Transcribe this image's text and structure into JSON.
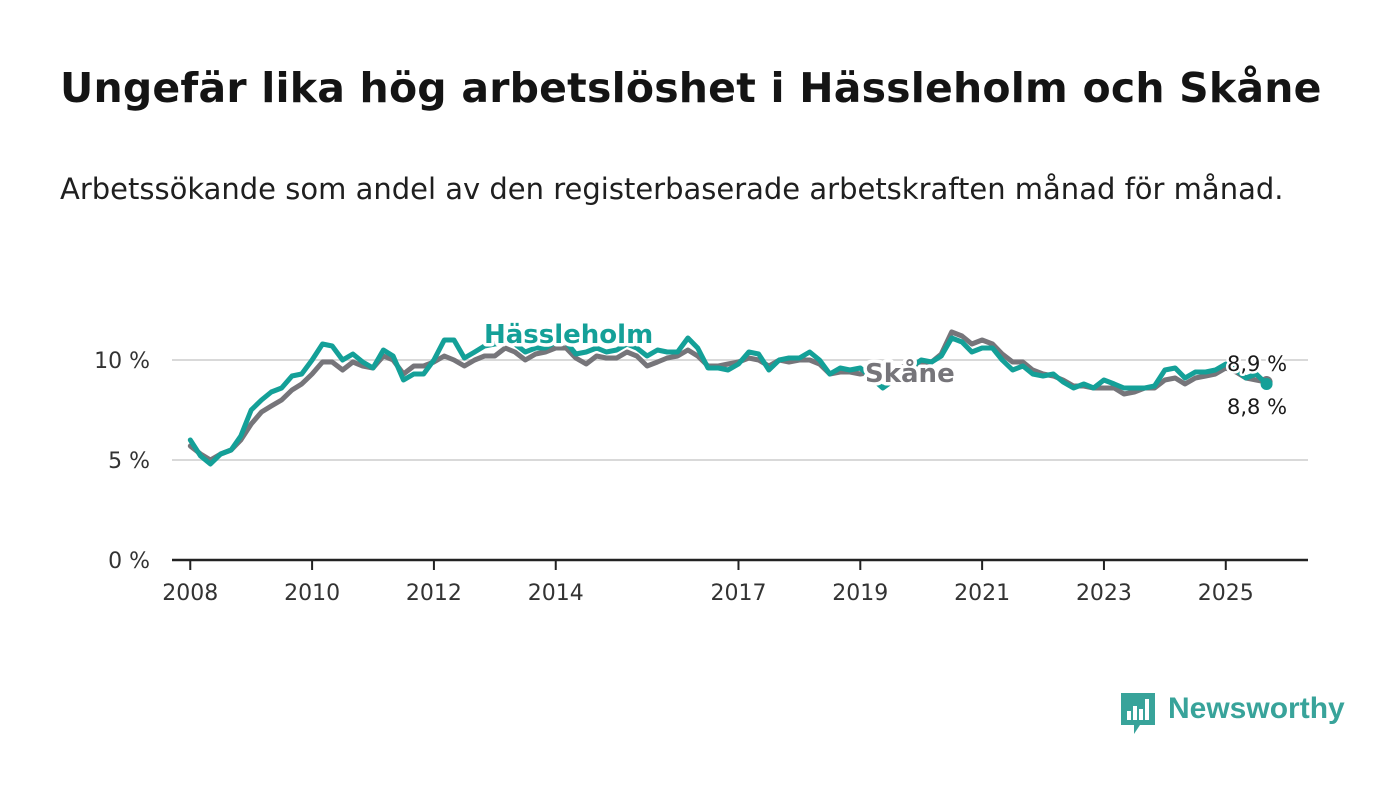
{
  "title": "Ungefär lika hög arbetslöshet i Hässleholm och Skåne",
  "subtitle": "Arbetssökande som andel av den registerbaserade arbetskraften månad för månad.",
  "brand": {
    "name": "Newsworthy",
    "color": "#38a39a"
  },
  "colors": {
    "hassleholm": "#14a098",
    "skane": "#76757a",
    "grid": "#d9d9d9",
    "axis": "#222222"
  },
  "chart_data": {
    "type": "line",
    "title": "Ungefär lika hög arbetslöshet i Hässleholm och Skåne",
    "xlabel": "",
    "ylabel": "",
    "xlim": [
      2007.7,
      2026.35
    ],
    "ylim": [
      0,
      12
    ],
    "y_ticks": [
      0,
      5,
      10
    ],
    "y_tick_labels": [
      "0 %",
      "5 %",
      "10 %"
    ],
    "x_ticks": [
      2008,
      2010,
      2012,
      2014,
      2017,
      2019,
      2021,
      2023,
      2025
    ],
    "x_tick_labels": [
      "2008",
      "2010",
      "2012",
      "2014",
      "2017",
      "2019",
      "2021",
      "2023",
      "2025"
    ],
    "grid": true,
    "series": [
      {
        "name": "Skåne",
        "label": "Skåne",
        "end_label": "8,9 %",
        "color": "#76757a",
        "points": [
          [
            2008.0,
            5.7
          ],
          [
            2008.17,
            5.3
          ],
          [
            2008.33,
            5.0
          ],
          [
            2008.5,
            5.3
          ],
          [
            2008.67,
            5.5
          ],
          [
            2008.83,
            6.0
          ],
          [
            2009.0,
            6.8
          ],
          [
            2009.17,
            7.4
          ],
          [
            2009.33,
            7.7
          ],
          [
            2009.5,
            8.0
          ],
          [
            2009.67,
            8.5
          ],
          [
            2009.83,
            8.8
          ],
          [
            2010.0,
            9.3
          ],
          [
            2010.17,
            9.9
          ],
          [
            2010.33,
            9.9
          ],
          [
            2010.5,
            9.5
          ],
          [
            2010.67,
            9.9
          ],
          [
            2010.83,
            9.7
          ],
          [
            2011.0,
            9.6
          ],
          [
            2011.17,
            10.2
          ],
          [
            2011.33,
            10.0
          ],
          [
            2011.5,
            9.3
          ],
          [
            2011.67,
            9.7
          ],
          [
            2011.83,
            9.7
          ],
          [
            2012.0,
            9.9
          ],
          [
            2012.17,
            10.2
          ],
          [
            2012.33,
            10.0
          ],
          [
            2012.5,
            9.7
          ],
          [
            2012.67,
            10.0
          ],
          [
            2012.83,
            10.2
          ],
          [
            2013.0,
            10.2
          ],
          [
            2013.17,
            10.6
          ],
          [
            2013.33,
            10.4
          ],
          [
            2013.5,
            10.0
          ],
          [
            2013.67,
            10.3
          ],
          [
            2013.83,
            10.4
          ],
          [
            2014.0,
            10.6
          ],
          [
            2014.17,
            10.6
          ],
          [
            2014.33,
            10.1
          ],
          [
            2014.5,
            9.8
          ],
          [
            2014.67,
            10.2
          ],
          [
            2014.83,
            10.1
          ],
          [
            2015.0,
            10.1
          ],
          [
            2015.17,
            10.4
          ],
          [
            2015.33,
            10.2
          ],
          [
            2015.5,
            9.7
          ],
          [
            2015.67,
            9.9
          ],
          [
            2015.83,
            10.1
          ],
          [
            2016.0,
            10.2
          ],
          [
            2016.17,
            10.5
          ],
          [
            2016.33,
            10.2
          ],
          [
            2016.5,
            9.7
          ],
          [
            2016.67,
            9.7
          ],
          [
            2016.83,
            9.8
          ],
          [
            2017.0,
            9.9
          ],
          [
            2017.17,
            10.1
          ],
          [
            2017.33,
            10.0
          ],
          [
            2017.5,
            9.7
          ],
          [
            2017.67,
            10.0
          ],
          [
            2017.83,
            9.9
          ],
          [
            2018.0,
            10.0
          ],
          [
            2018.17,
            10.0
          ],
          [
            2018.33,
            9.8
          ],
          [
            2018.5,
            9.3
          ],
          [
            2018.67,
            9.4
          ],
          [
            2018.83,
            9.4
          ],
          [
            2019.0,
            9.3
          ],
          [
            2020.17,
            9.9
          ],
          [
            2020.33,
            10.3
          ],
          [
            2020.5,
            11.4
          ],
          [
            2020.67,
            11.2
          ],
          [
            2020.83,
            10.8
          ],
          [
            2021.0,
            11.0
          ],
          [
            2021.17,
            10.8
          ],
          [
            2021.33,
            10.3
          ],
          [
            2021.5,
            9.9
          ],
          [
            2021.67,
            9.9
          ],
          [
            2021.83,
            9.5
          ],
          [
            2022.0,
            9.3
          ],
          [
            2022.17,
            9.2
          ],
          [
            2022.33,
            9.0
          ],
          [
            2022.5,
            8.7
          ],
          [
            2022.67,
            8.7
          ],
          [
            2022.83,
            8.6
          ],
          [
            2023.0,
            8.6
          ],
          [
            2023.17,
            8.6
          ],
          [
            2023.33,
            8.3
          ],
          [
            2023.5,
            8.4
          ],
          [
            2023.67,
            8.6
          ],
          [
            2023.83,
            8.6
          ],
          [
            2024.0,
            9.0
          ],
          [
            2024.17,
            9.1
          ],
          [
            2024.33,
            8.8
          ],
          [
            2024.5,
            9.1
          ],
          [
            2024.67,
            9.2
          ],
          [
            2024.83,
            9.3
          ],
          [
            2025.0,
            9.6
          ],
          [
            2025.17,
            9.4
          ],
          [
            2025.33,
            9.1
          ],
          [
            2025.5,
            9.0
          ],
          [
            2025.67,
            8.9
          ]
        ]
      },
      {
        "name": "Hässleholm",
        "label": "Hässleholm",
        "end_label": "8,8 %",
        "color": "#14a098",
        "points": [
          [
            2008.0,
            6.0
          ],
          [
            2008.17,
            5.2
          ],
          [
            2008.33,
            4.8
          ],
          [
            2008.5,
            5.3
          ],
          [
            2008.67,
            5.5
          ],
          [
            2008.83,
            6.2
          ],
          [
            2009.0,
            7.5
          ],
          [
            2009.17,
            8.0
          ],
          [
            2009.33,
            8.4
          ],
          [
            2009.5,
            8.6
          ],
          [
            2009.67,
            9.2
          ],
          [
            2009.83,
            9.3
          ],
          [
            2010.0,
            10.0
          ],
          [
            2010.17,
            10.8
          ],
          [
            2010.33,
            10.7
          ],
          [
            2010.5,
            10.0
          ],
          [
            2010.67,
            10.3
          ],
          [
            2010.83,
            9.9
          ],
          [
            2011.0,
            9.6
          ],
          [
            2011.17,
            10.5
          ],
          [
            2011.33,
            10.2
          ],
          [
            2011.5,
            9.0
          ],
          [
            2011.67,
            9.3
          ],
          [
            2011.83,
            9.3
          ],
          [
            2012.0,
            10.0
          ],
          [
            2012.17,
            11.0
          ],
          [
            2012.33,
            11.0
          ],
          [
            2012.5,
            10.1
          ],
          [
            2012.67,
            10.4
          ],
          [
            2012.83,
            10.7
          ],
          [
            2013.0,
            10.8
          ],
          [
            2013.17,
            10.9
          ],
          [
            2013.33,
            10.8
          ],
          [
            2013.5,
            10.4
          ],
          [
            2013.67,
            10.6
          ],
          [
            2013.83,
            10.6
          ],
          [
            2014.0,
            10.9
          ],
          [
            2014.17,
            10.9
          ],
          [
            2014.33,
            10.3
          ],
          [
            2014.5,
            10.4
          ],
          [
            2014.67,
            10.6
          ],
          [
            2014.83,
            10.4
          ],
          [
            2015.0,
            10.5
          ],
          [
            2015.17,
            10.8
          ],
          [
            2015.33,
            10.6
          ],
          [
            2015.5,
            10.2
          ],
          [
            2015.67,
            10.5
          ],
          [
            2015.83,
            10.4
          ],
          [
            2016.0,
            10.4
          ],
          [
            2016.17,
            11.1
          ],
          [
            2016.33,
            10.6
          ],
          [
            2016.5,
            9.6
          ],
          [
            2016.67,
            9.6
          ],
          [
            2016.83,
            9.5
          ],
          [
            2017.0,
            9.8
          ],
          [
            2017.17,
            10.4
          ],
          [
            2017.33,
            10.3
          ],
          [
            2017.5,
            9.5
          ],
          [
            2017.67,
            10.0
          ],
          [
            2017.83,
            10.1
          ],
          [
            2018.0,
            10.1
          ],
          [
            2018.17,
            10.4
          ],
          [
            2018.33,
            10.0
          ],
          [
            2018.5,
            9.3
          ],
          [
            2018.67,
            9.6
          ],
          [
            2018.83,
            9.5
          ],
          [
            2019.0,
            9.6
          ],
          [
            2019.37,
            8.6
          ],
          [
            2020.0,
            10.0
          ],
          [
            2020.17,
            9.9
          ],
          [
            2020.33,
            10.2
          ],
          [
            2020.5,
            11.1
          ],
          [
            2020.67,
            10.9
          ],
          [
            2020.83,
            10.4
          ],
          [
            2021.0,
            10.6
          ],
          [
            2021.17,
            10.6
          ],
          [
            2021.33,
            10.0
          ],
          [
            2021.5,
            9.5
          ],
          [
            2021.67,
            9.7
          ],
          [
            2021.83,
            9.3
          ],
          [
            2022.0,
            9.2
          ],
          [
            2022.17,
            9.3
          ],
          [
            2022.33,
            8.9
          ],
          [
            2022.5,
            8.6
          ],
          [
            2022.67,
            8.8
          ],
          [
            2022.83,
            8.6
          ],
          [
            2023.0,
            9.0
          ],
          [
            2023.17,
            8.8
          ],
          [
            2023.33,
            8.6
          ],
          [
            2023.5,
            8.6
          ],
          [
            2023.67,
            8.6
          ],
          [
            2023.83,
            8.7
          ],
          [
            2024.0,
            9.5
          ],
          [
            2024.17,
            9.6
          ],
          [
            2024.33,
            9.1
          ],
          [
            2024.5,
            9.4
          ],
          [
            2024.67,
            9.4
          ],
          [
            2024.83,
            9.5
          ],
          [
            2025.0,
            9.8
          ],
          [
            2025.17,
            9.5
          ],
          [
            2025.33,
            9.1
          ],
          [
            2025.5,
            9.3
          ],
          [
            2025.67,
            8.8
          ]
        ]
      }
    ]
  }
}
